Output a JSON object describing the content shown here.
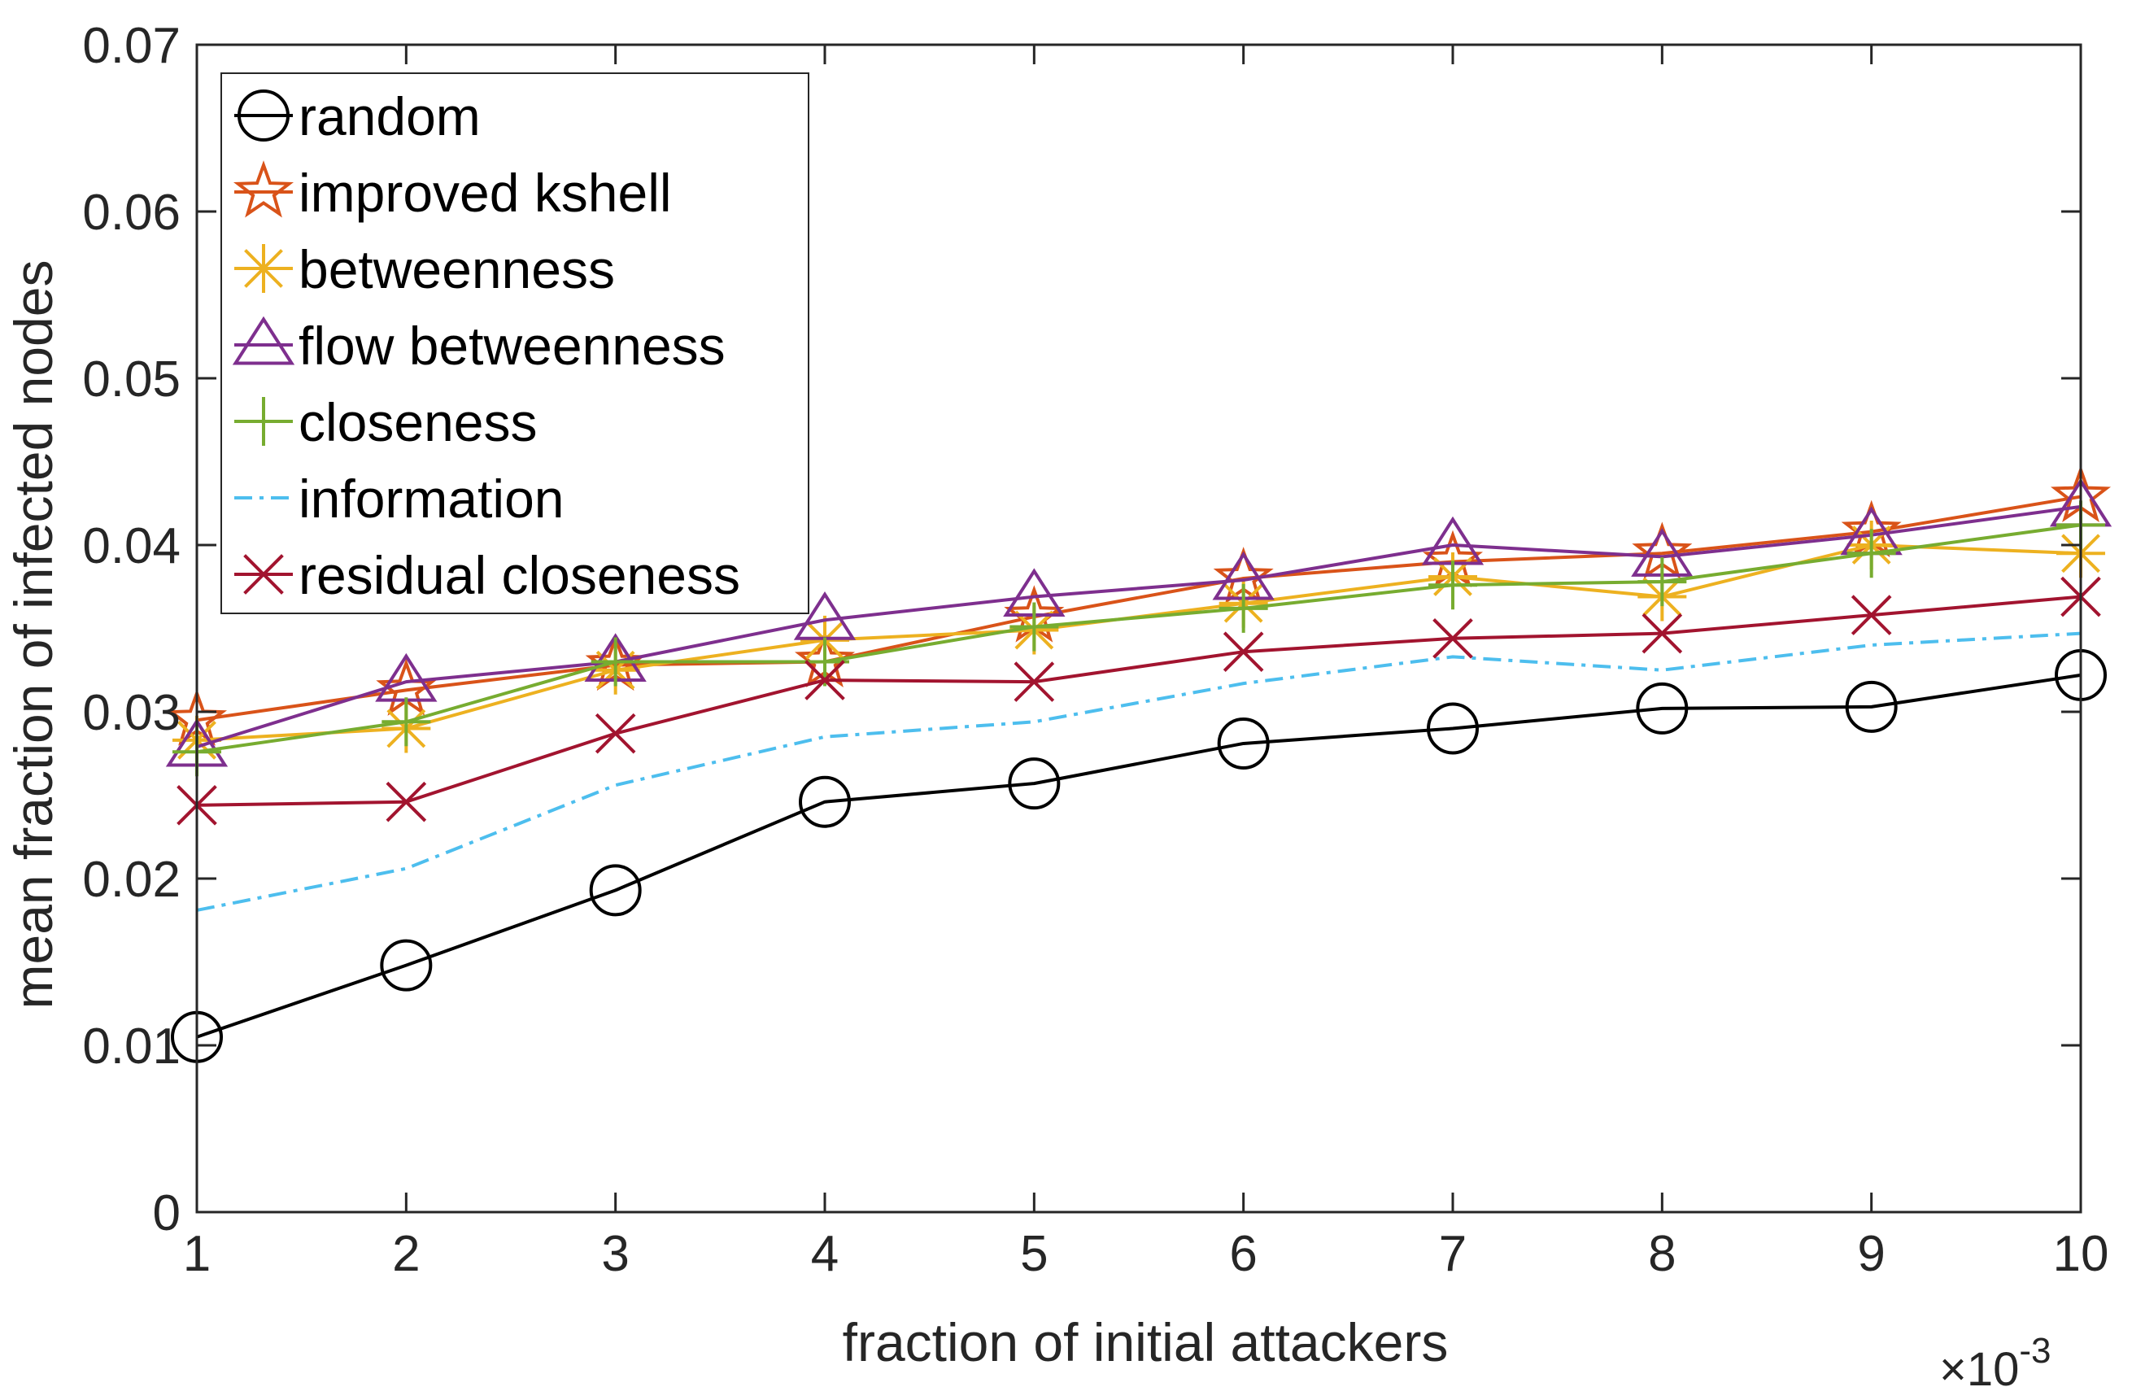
{
  "chart_data": {
    "type": "line",
    "title": "",
    "xlabel": "fraction of initial attackers",
    "ylabel": "mean fraction of infected nodes",
    "x_exponent_base": "×10",
    "x_exponent_power": "-3",
    "xlim": [
      1,
      10
    ],
    "ylim": [
      0,
      0.07
    ],
    "x": [
      1,
      2,
      3,
      4,
      5,
      6,
      7,
      8,
      9,
      10
    ],
    "xticks": [
      "1",
      "2",
      "3",
      "4",
      "5",
      "6",
      "7",
      "8",
      "9",
      "10"
    ],
    "yticks": [
      "0",
      "0.01",
      "0.02",
      "0.03",
      "0.04",
      "0.05",
      "0.06",
      "0.07"
    ],
    "ytick_values": [
      0,
      0.01,
      0.02,
      0.03,
      0.04,
      0.05,
      0.06,
      0.07
    ],
    "grid": false,
    "legend_position": "top-left",
    "series": [
      {
        "name": "random",
        "color": "#000000",
        "marker": "circle",
        "line": "solid",
        "values": [
          0.0105,
          0.0148,
          0.0193,
          0.0246,
          0.0257,
          0.0281,
          0.029,
          0.0302,
          0.0303,
          0.0322
        ]
      },
      {
        "name": "improved kshell",
        "color": "#D95319",
        "marker": "star",
        "line": "solid",
        "values": [
          0.0295,
          0.0313,
          0.0328,
          0.033,
          0.0357,
          0.038,
          0.039,
          0.0395,
          0.0408,
          0.0429
        ]
      },
      {
        "name": "betweenness",
        "color": "#EDB120",
        "marker": "asterisk",
        "line": "solid",
        "values": [
          0.0283,
          0.029,
          0.0325,
          0.0343,
          0.0349,
          0.0365,
          0.0381,
          0.0369,
          0.04,
          0.0395
        ]
      },
      {
        "name": "flow betweenness",
        "color": "#7E2F8E",
        "marker": "triangle",
        "line": "solid",
        "values": [
          0.0279,
          0.0318,
          0.033,
          0.0355,
          0.0369,
          0.0379,
          0.04,
          0.0393,
          0.0406,
          0.0423
        ]
      },
      {
        "name": "closeness",
        "color": "#77AC30",
        "marker": "plus",
        "line": "solid",
        "values": [
          0.0276,
          0.0294,
          0.033,
          0.033,
          0.0351,
          0.0362,
          0.0376,
          0.0378,
          0.0395,
          0.0412
        ]
      },
      {
        "name": "information",
        "color": "#4DBEEE",
        "marker": "none",
        "line": "dashdot",
        "values": [
          0.0181,
          0.0206,
          0.0256,
          0.0285,
          0.0294,
          0.0317,
          0.0333,
          0.0325,
          0.034,
          0.0347
        ]
      },
      {
        "name": "residual closeness",
        "color": "#A2142F",
        "marker": "x",
        "line": "solid",
        "values": [
          0.0244,
          0.0246,
          0.0287,
          0.0319,
          0.0318,
          0.0336,
          0.0344,
          0.0347,
          0.0358,
          0.0369
        ]
      }
    ]
  }
}
